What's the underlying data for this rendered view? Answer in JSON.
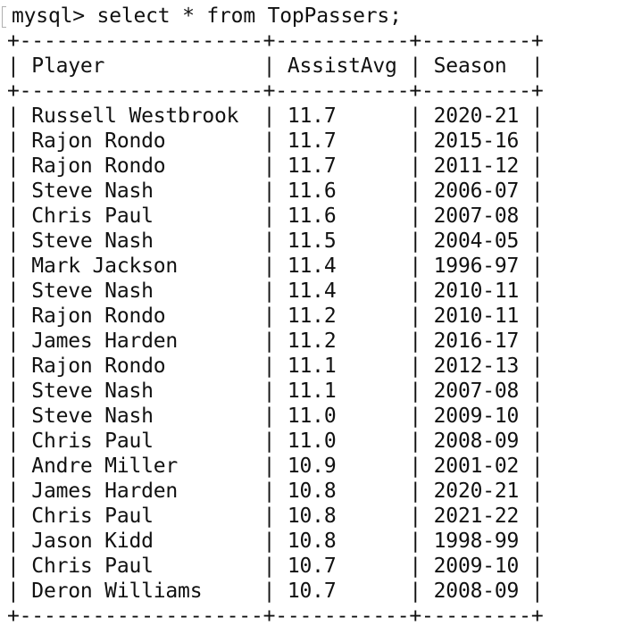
{
  "terminal": {
    "prompt": "mysql>",
    "command": "select * from TopPassers;",
    "separator": "+--------------------+-----------+---------+",
    "header_row": "| Player             | AssistAvg | Season  |",
    "columns": [
      "Player",
      "AssistAvg",
      "Season"
    ],
    "rows": [
      "| Russell Westbrook  | 11.7      | 2020-21 |",
      "| Rajon Rondo        | 11.7      | 2015-16 |",
      "| Rajon Rondo        | 11.7      | 2011-12 |",
      "| Steve Nash         | 11.6      | 2006-07 |",
      "| Chris Paul         | 11.6      | 2007-08 |",
      "| Steve Nash         | 11.5      | 2004-05 |",
      "| Mark Jackson       | 11.4      | 1996-97 |",
      "| Steve Nash         | 11.4      | 2010-11 |",
      "| Rajon Rondo        | 11.2      | 2010-11 |",
      "| James Harden       | 11.2      | 2016-17 |",
      "| Rajon Rondo        | 11.1      | 2012-13 |",
      "| Steve Nash         | 11.1      | 2007-08 |",
      "| Steve Nash         | 11.0      | 2009-10 |",
      "| Chris Paul         | 11.0      | 2008-09 |",
      "| Andre Miller       | 10.9      | 2001-02 |",
      "| James Harden       | 10.8      | 2020-21 |",
      "| Chris Paul         | 10.8      | 2021-22 |",
      "| Jason Kidd         | 10.8      | 1998-99 |",
      "| Chris Paul         | 10.7      | 2009-10 |",
      "| Deron Williams     | 10.7      | 2008-09 |"
    ]
  }
}
